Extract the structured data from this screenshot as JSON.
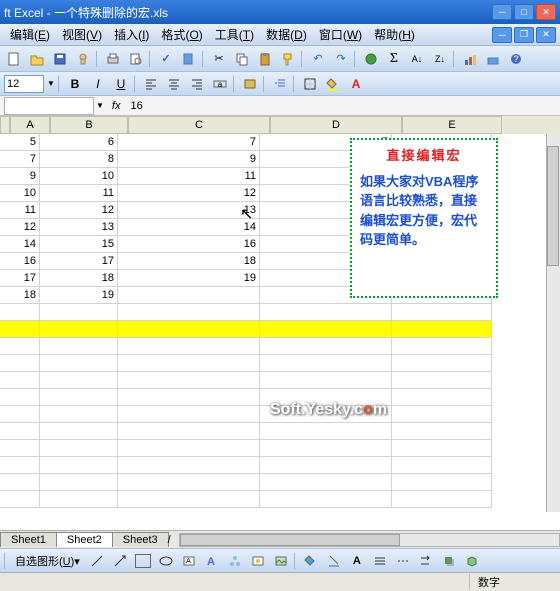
{
  "window": {
    "title": "ft Excel - 一个特殊删除的宏.xls"
  },
  "menus": {
    "edit": "编辑",
    "edit_u": "E",
    "view": "视图",
    "view_u": "V",
    "insert": "插入",
    "insert_u": "I",
    "format": "格式",
    "format_u": "O",
    "tools": "工具",
    "tools_u": "T",
    "data": "数据",
    "data_u": "D",
    "window": "窗口",
    "window_u": "W",
    "help": "帮助",
    "help_u": "H"
  },
  "format_bar": {
    "fontsize": "12"
  },
  "formula": {
    "namebox": "",
    "fx": "fx",
    "value": "16"
  },
  "columns": [
    "A",
    "B",
    "C",
    "D",
    "E"
  ],
  "col_widths": {
    "A": 40,
    "B": 78,
    "C": 142,
    "D": 132,
    "E": 100
  },
  "data_rows": [
    {
      "A": "5",
      "B": "6",
      "C": "7",
      "D": "7",
      "E": ""
    },
    {
      "A": "7",
      "B": "8",
      "C": "9",
      "D": "",
      "E": ""
    },
    {
      "A": "9",
      "B": "10",
      "C": "11",
      "D": "",
      "E": ""
    },
    {
      "A": "10",
      "B": "11",
      "C": "12",
      "D": "",
      "E": ""
    },
    {
      "A": "11",
      "B": "12",
      "C": "13",
      "D": "",
      "E": ""
    },
    {
      "A": "12",
      "B": "13",
      "C": "14",
      "D": "",
      "E": ""
    },
    {
      "A": "14",
      "B": "15",
      "C": "16",
      "D": "",
      "E": ""
    },
    {
      "A": "16",
      "B": "17",
      "C": "18",
      "D": "",
      "E": ""
    },
    {
      "A": "17",
      "B": "18",
      "C": "19",
      "D": "",
      "E": ""
    },
    {
      "A": "18",
      "B": "19",
      "C": "",
      "D": "",
      "E": ""
    }
  ],
  "highlight_row_index": 11,
  "callout": {
    "title": "直接编辑宏",
    "body": "如果大家对VBA程序语言比较熟悉，直接编辑宏更方便，宏代码更简单。",
    "border_color": "#00a030",
    "title_color": "#e02020",
    "body_color": "#1a4fd0"
  },
  "watermark": {
    "pre": "Soft.Yesky.c",
    "o": "o",
    "post": "m"
  },
  "sheets": [
    "Sheet1",
    "Sheet2",
    "Sheet3"
  ],
  "active_sheet": 1,
  "drawbar": {
    "label": "自选图形",
    "label_u": "U"
  },
  "status": {
    "right": "数字"
  },
  "colors": {
    "title_grad_top": "#3a80e0",
    "title_grad_bot": "#1a5fc0",
    "toolbar_top": "#e8f0fa",
    "toolbar_bot": "#c4d8f0",
    "grid_border": "#d4d4c8",
    "header_bg": "#e8e8d8",
    "highlight": "#ffff00"
  }
}
